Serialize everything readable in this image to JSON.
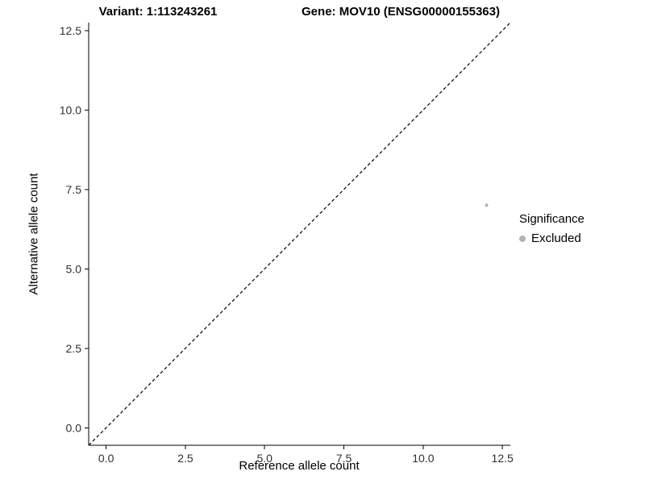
{
  "chart_data": {
    "type": "scatter",
    "title_variant": "Variant: 1:113243261",
    "title_gene": "Gene: MOV10 (ENSG00000155363)",
    "xlabel": "Reference allele count",
    "ylabel": "Alternative allele count",
    "xlim": [
      -0.55,
      12.75
    ],
    "ylim": [
      -0.55,
      12.75
    ],
    "x_ticks": [
      0.0,
      2.5,
      5.0,
      7.5,
      10.0,
      12.5
    ],
    "y_ticks": [
      0.0,
      2.5,
      5.0,
      7.5,
      10.0,
      12.5
    ],
    "x_tick_labels": [
      "0.0",
      "2.5",
      "5.0",
      "7.5",
      "10.0",
      "12.5"
    ],
    "y_tick_labels": [
      "0.0",
      "2.5",
      "5.0",
      "7.5",
      "10.0",
      "12.5"
    ],
    "grid": false,
    "identity_line": {
      "style": "dashed",
      "color": "#000000",
      "equation": "y = x"
    },
    "points": [
      {
        "x": 12,
        "y": 7,
        "series": "Excluded"
      }
    ],
    "series_colors": {
      "Excluded": "#b3b3b3"
    },
    "legend": {
      "position": "right",
      "title": "Significance",
      "entries": [
        {
          "label": "Excluded",
          "color": "#b3b3b3"
        }
      ]
    }
  }
}
